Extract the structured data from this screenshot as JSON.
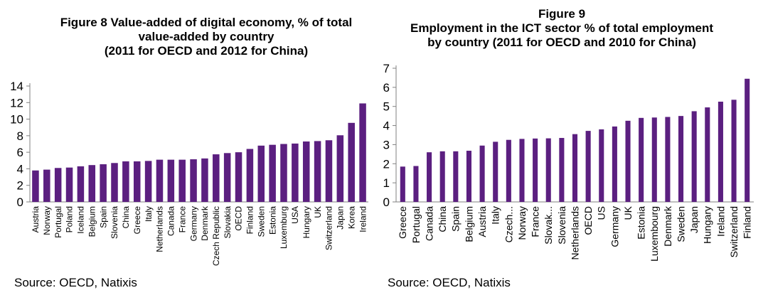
{
  "chart_data": [
    {
      "type": "bar",
      "title_lines": [
        "Figure 8 Value-added of digital economy, % of total",
        "value-added by country",
        "(2011 for OECD and 2012 for China)"
      ],
      "categories": [
        "Austria",
        "Norway",
        "Portugal",
        "Poland",
        "Iceland",
        "Belgium",
        "Spain",
        "Slovenia",
        "China",
        "Greece",
        "Italy",
        "Netherlands",
        "Canada",
        "France",
        "Germany",
        "Denmark",
        "Czech Republic",
        "Slovakia",
        "OECD",
        "Finland",
        "Sweden",
        "Estonia",
        "Luxemburg",
        "USA",
        "Hungary",
        "UK",
        "Switzerland",
        "Japan",
        "Korea",
        "Ireland"
      ],
      "values": [
        3.8,
        3.9,
        4.1,
        4.15,
        4.3,
        4.45,
        4.55,
        4.7,
        4.9,
        4.9,
        4.95,
        5.1,
        5.1,
        5.1,
        5.15,
        5.25,
        5.75,
        5.9,
        6.0,
        6.4,
        6.8,
        6.9,
        7.0,
        7.05,
        7.3,
        7.35,
        7.45,
        8.05,
        9.55,
        11.9
      ],
      "yticks": [
        "0",
        "2",
        "4",
        "6",
        "8",
        "10",
        "12",
        "14"
      ],
      "ylim": [
        0,
        14
      ],
      "bar_color": "#5b1f80",
      "grid": false,
      "legend": "none",
      "source": "Source: OECD, Natixis"
    },
    {
      "type": "bar",
      "title_lines": [
        "Figure 9",
        "Employment in the ICT sector % of total employment",
        "by country (2011 for OECD and 2010 for China)"
      ],
      "categories": [
        "Greece",
        "Portugal",
        "Canada",
        "China",
        "Spain",
        "Belgium",
        "Austria",
        "Italy",
        "Czech...",
        "Norway",
        "France",
        "Slovak...",
        "Slovenia",
        "Netherlands",
        "OECD",
        "US",
        "Germany",
        "UK",
        "Estonia",
        "Luxembourg",
        "Denmark",
        "Sweden",
        "Japan",
        "Hungary",
        "Ireland",
        "Switzerland",
        "Finland"
      ],
      "values": [
        1.85,
        1.88,
        2.6,
        2.65,
        2.65,
        2.68,
        2.95,
        3.15,
        3.25,
        3.3,
        3.32,
        3.33,
        3.35,
        3.55,
        3.72,
        3.8,
        3.95,
        4.25,
        4.4,
        4.42,
        4.45,
        4.5,
        4.75,
        4.95,
        5.25,
        5.35,
        6.45
      ],
      "yticks": [
        "0",
        "1",
        "2",
        "3",
        "4",
        "5",
        "6",
        "7"
      ],
      "ylim": [
        0,
        7
      ],
      "bar_color": "#5b1f80",
      "grid": false,
      "legend": "none",
      "source": "Source: OECD, Natixis"
    }
  ]
}
